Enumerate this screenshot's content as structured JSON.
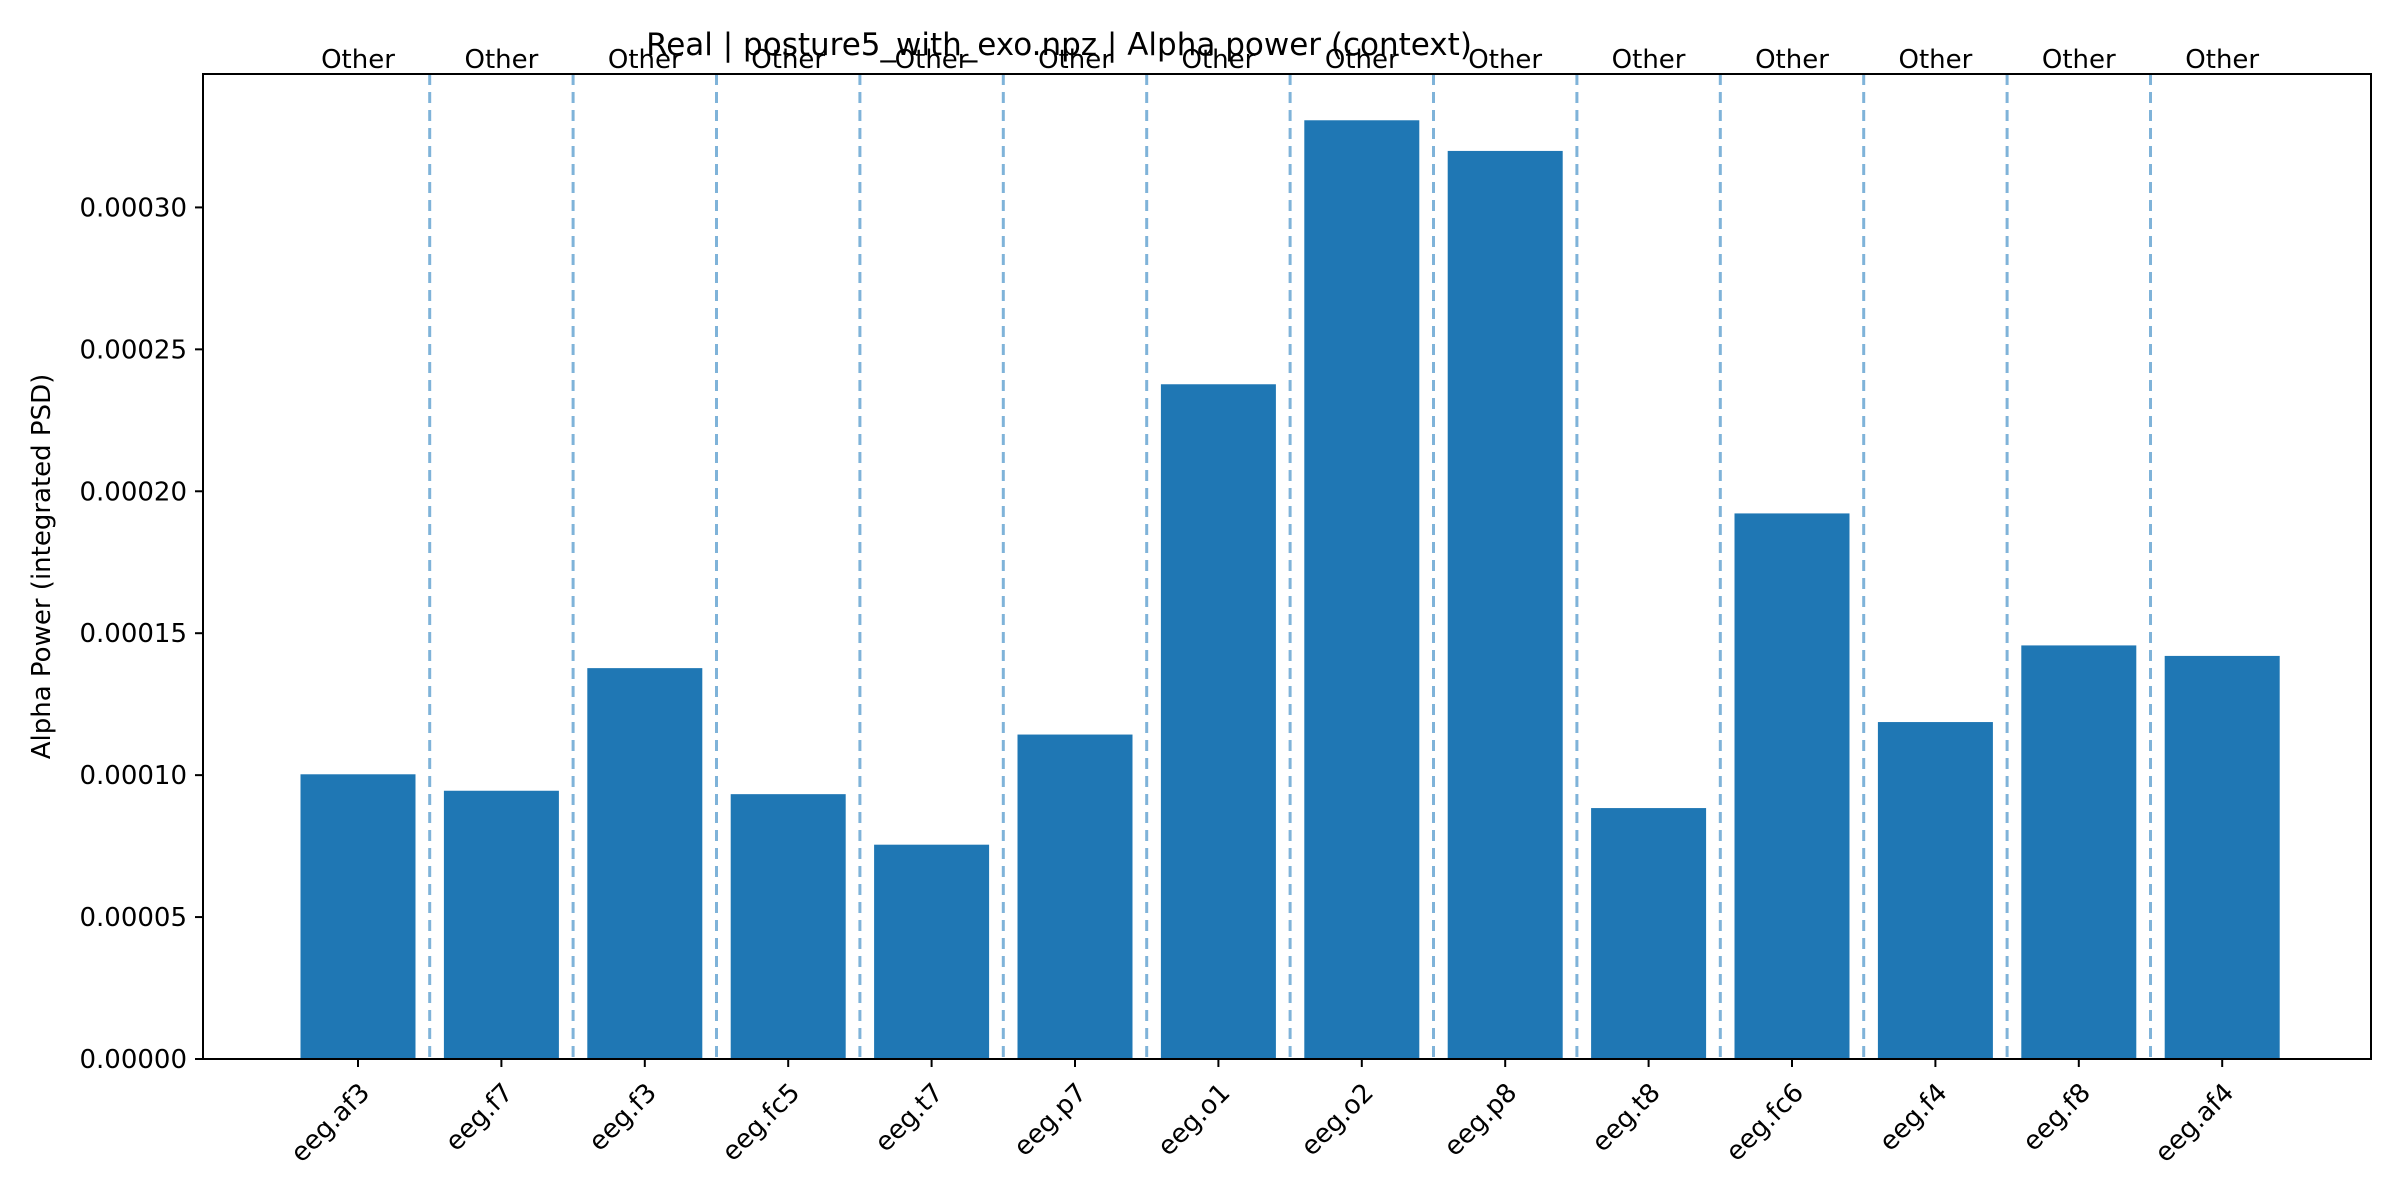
{
  "chart_data": {
    "type": "bar",
    "title": "Real | posture5_with_exo.npz | Alpha power (context)",
    "xlabel": "",
    "ylabel": "Alpha Power (integrated PSD)",
    "categories": [
      "eeg.af3",
      "eeg.f7",
      "eeg.f3",
      "eeg.fc5",
      "eeg.t7",
      "eeg.p7",
      "eeg.o1",
      "eeg.o2",
      "eeg.p8",
      "eeg.t8",
      "eeg.fc6",
      "eeg.f4",
      "eeg.f8",
      "eeg.af4"
    ],
    "values": [
      0.0001003,
      9.45e-05,
      0.0001377,
      9.33e-05,
      7.55e-05,
      0.0001143,
      0.0002377,
      0.0003307,
      0.0003199,
      8.84e-05,
      0.0001922,
      0.0001187,
      0.0001457,
      0.000142
    ],
    "group_labels": [
      "Other",
      "Other",
      "Other",
      "Other",
      "Other",
      "Other",
      "Other",
      "Other",
      "Other",
      "Other",
      "Other",
      "Other",
      "Other",
      "Other"
    ],
    "y_ticks": [
      "0.00000",
      "0.00005",
      "0.00010",
      "0.00015",
      "0.00020",
      "0.00025",
      "0.00030"
    ],
    "y_tick_values": [
      0,
      5e-05,
      0.0001,
      0.00015,
      0.0002,
      0.00025,
      0.0003
    ],
    "ylim": [
      0,
      0.000347
    ],
    "separators": "dashed vertical lines between every bar",
    "grid": false,
    "colors": {
      "bar": "#1f77b4",
      "separator": "#7fb3d9",
      "axis": "#000000"
    }
  }
}
